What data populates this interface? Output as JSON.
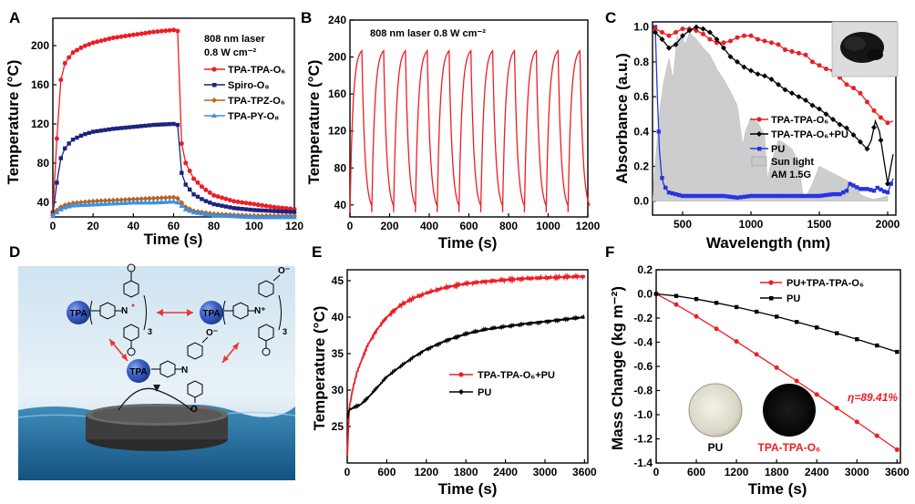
{
  "chart_data": [
    {
      "panel": "A",
      "type": "line",
      "xlabel": "Time (s)",
      "ylabel": "Temperature (°C)",
      "xlim": [
        0,
        120
      ],
      "ylim": [
        25,
        228
      ],
      "xticks": [
        0,
        20,
        40,
        60,
        80,
        100,
        120
      ],
      "yticks": [
        40,
        80,
        120,
        160,
        200
      ],
      "annotation": [
        "808 nm laser",
        "0.8 W cm⁻²"
      ],
      "series": [
        {
          "name": "TPA-TPA-O₆",
          "color": "#ee1c25",
          "marker": "circle",
          "x": [
            0,
            2,
            4,
            6,
            8,
            10,
            15,
            20,
            30,
            40,
            50,
            60,
            62,
            64,
            66,
            70,
            75,
            80,
            90,
            100,
            110,
            120
          ],
          "y": [
            30,
            105,
            165,
            182,
            188,
            193,
            199,
            203,
            208,
            211,
            214,
            216,
            215,
            100,
            80,
            64,
            54,
            47,
            41,
            38,
            35,
            33
          ]
        },
        {
          "name": "Spiro-O₈",
          "color": "#1a237e",
          "marker": "square",
          "x": [
            0,
            2,
            4,
            6,
            8,
            10,
            15,
            20,
            30,
            40,
            50,
            60,
            62,
            64,
            66,
            70,
            75,
            80,
            90,
            100,
            110,
            120
          ],
          "y": [
            28,
            60,
            85,
            95,
            100,
            104,
            109,
            112,
            115,
            117,
            119,
            120,
            119,
            70,
            58,
            48,
            42,
            38,
            34,
            32,
            31,
            30
          ]
        },
        {
          "name": "TPA-TPZ-O₆",
          "color": "#b8631c",
          "marker": "diamond",
          "x": [
            0,
            3,
            6,
            10,
            20,
            30,
            40,
            50,
            60,
            62,
            66,
            70,
            80,
            90,
            100,
            110,
            120
          ],
          "y": [
            27,
            34,
            37,
            39,
            41,
            42,
            43,
            44,
            45,
            44,
            35,
            31,
            28,
            27,
            26,
            26,
            26
          ]
        },
        {
          "name": "TPA-PY-O₈",
          "color": "#3a8ee6",
          "marker": "triangle",
          "x": [
            0,
            3,
            6,
            10,
            20,
            30,
            40,
            50,
            60,
            62,
            66,
            70,
            80,
            90,
            100,
            110,
            120
          ],
          "y": [
            26,
            32,
            35,
            37,
            38,
            39,
            40,
            40,
            41,
            40,
            33,
            30,
            27,
            26,
            25,
            25,
            25
          ]
        }
      ]
    },
    {
      "panel": "B",
      "type": "line",
      "xlabel": "Time (s)",
      "ylabel": "Temperature (°C)",
      "xlim": [
        0,
        1200
      ],
      "ylim": [
        27,
        240
      ],
      "xticks": [
        0,
        200,
        400,
        600,
        800,
        1000,
        1200
      ],
      "yticks": [
        40,
        80,
        120,
        160,
        200,
        240
      ],
      "annotation": [
        "808 nm laser 0.8 W cm⁻²"
      ],
      "cycles": 11,
      "period": 110,
      "heat_duration": 60,
      "min_temp": 32,
      "max_temp": 210,
      "series": [
        {
          "name": "TPA-TPA-O₆",
          "color": "#ee1c25"
        }
      ]
    },
    {
      "panel": "C",
      "type": "line",
      "xlabel": "Wavelength (nm)",
      "ylabel": "Absorbance (a.u.)",
      "xlim": [
        280,
        2060
      ],
      "ylim": [
        -0.08,
        1.03
      ],
      "xticks": [
        500,
        1000,
        1500,
        2000
      ],
      "yticks": [
        0.0,
        0.2,
        0.4,
        0.6,
        0.8,
        1.0
      ],
      "series": [
        {
          "name": "TPA-TPA-O₆",
          "color": "#ee1c25",
          "marker": "circle",
          "x": [
            300,
            350,
            400,
            450,
            500,
            550,
            600,
            650,
            700,
            750,
            800,
            850,
            900,
            950,
            1000,
            1050,
            1100,
            1150,
            1200,
            1250,
            1300,
            1350,
            1400,
            1450,
            1500,
            1550,
            1600,
            1650,
            1700,
            1750,
            1800,
            1850,
            1900,
            1950,
            2000,
            2040
          ],
          "y": [
            0.99,
            0.97,
            0.95,
            0.97,
            0.99,
            0.99,
            0.98,
            0.96,
            0.93,
            0.91,
            0.91,
            0.92,
            0.94,
            0.95,
            0.95,
            0.93,
            0.92,
            0.91,
            0.9,
            0.87,
            0.86,
            0.85,
            0.84,
            0.8,
            0.78,
            0.76,
            0.75,
            0.71,
            0.67,
            0.65,
            0.62,
            0.57,
            0.52,
            0.48,
            0.45,
            0.46
          ]
        },
        {
          "name": "TPA-TPA-O₆+PU",
          "color": "#000000",
          "marker": "diamond",
          "x": [
            300,
            350,
            400,
            450,
            500,
            550,
            600,
            650,
            700,
            750,
            800,
            850,
            900,
            950,
            1000,
            1050,
            1100,
            1150,
            1200,
            1250,
            1300,
            1350,
            1400,
            1450,
            1500,
            1550,
            1600,
            1650,
            1700,
            1750,
            1800,
            1850,
            1880,
            1910,
            1940,
            1970,
            2000,
            2040
          ],
          "y": [
            0.97,
            0.93,
            0.88,
            0.9,
            0.95,
            0.98,
            1.0,
            0.99,
            0.97,
            0.93,
            0.88,
            0.83,
            0.8,
            0.77,
            0.75,
            0.73,
            0.72,
            0.7,
            0.67,
            0.64,
            0.62,
            0.6,
            0.58,
            0.55,
            0.53,
            0.5,
            0.47,
            0.44,
            0.42,
            0.38,
            0.34,
            0.3,
            0.35,
            0.46,
            0.4,
            0.25,
            0.1,
            0.27
          ]
        },
        {
          "name": "PU",
          "color": "#2633e6",
          "marker": "square",
          "x": [
            300,
            315,
            330,
            345,
            360,
            380,
            400,
            450,
            500,
            600,
            700,
            800,
            900,
            1000,
            1100,
            1200,
            1300,
            1400,
            1500,
            1600,
            1650,
            1700,
            1720,
            1750,
            1800,
            1850,
            1900,
            1930,
            1960,
            2000,
            2040
          ],
          "y": [
            1.0,
            0.6,
            0.3,
            0.15,
            0.1,
            0.07,
            0.05,
            0.04,
            0.03,
            0.03,
            0.03,
            0.03,
            0.02,
            0.03,
            0.03,
            0.03,
            0.03,
            0.03,
            0.03,
            0.04,
            0.04,
            0.06,
            0.1,
            0.09,
            0.07,
            0.07,
            0.06,
            0.08,
            0.06,
            0.05,
            0.13
          ]
        },
        {
          "name": "Sun light AM 1.5G",
          "type": "area",
          "color": "#c8c8c8",
          "x": [
            280,
            300,
            330,
            360,
            400,
            430,
            460,
            480,
            500,
            520,
            550,
            600,
            650,
            700,
            750,
            800,
            850,
            900,
            940,
            960,
            1000,
            1050,
            1100,
            1120,
            1140,
            1200,
            1250,
            1300,
            1350,
            1380,
            1400,
            1450,
            1500,
            1550,
            1600,
            1650,
            1700,
            1750,
            1800,
            1850,
            1900,
            1950,
            2000
          ],
          "y": [
            0.0,
            0.22,
            0.5,
            0.68,
            0.82,
            0.7,
            0.95,
            0.92,
            0.94,
            0.9,
            0.97,
            0.93,
            0.88,
            0.84,
            0.76,
            0.7,
            0.63,
            0.55,
            0.32,
            0.4,
            0.48,
            0.45,
            0.38,
            0.12,
            0.2,
            0.35,
            0.33,
            0.3,
            0.22,
            0.03,
            0.02,
            0.1,
            0.2,
            0.18,
            0.16,
            0.14,
            0.12,
            0.1,
            0.04,
            0.02,
            0.01,
            0.02,
            0.03
          ]
        }
      ]
    },
    {
      "panel": "E",
      "type": "line",
      "xlabel": "Time (s)",
      "ylabel": "Temperature (°C)",
      "xlim": [
        0,
        3650
      ],
      "ylim": [
        20,
        46.5
      ],
      "xticks": [
        0,
        600,
        1200,
        1800,
        2400,
        3000,
        3600
      ],
      "yticks": [
        25,
        30,
        35,
        40,
        45
      ],
      "series": [
        {
          "name": "TPA-TPA-O₆+PU",
          "color": "#ee1c25",
          "x": [
            0,
            30,
            80,
            150,
            300,
            450,
            600,
            800,
            1000,
            1200,
            1500,
            1800,
            2100,
            2400,
            2700,
            3000,
            3300,
            3600
          ],
          "y": [
            21,
            27.5,
            30,
            32.5,
            36,
            38.3,
            40,
            41.6,
            42.6,
            43.3,
            44.1,
            44.6,
            44.9,
            45.1,
            45.3,
            45.4,
            45.5,
            45.6
          ]
        },
        {
          "name": "PU",
          "color": "#000000",
          "x": [
            0,
            30,
            100,
            200,
            300,
            450,
            600,
            800,
            1000,
            1200,
            1500,
            1800,
            2100,
            2400,
            2700,
            3000,
            3300,
            3600
          ],
          "y": [
            26,
            27.3,
            27.6,
            28,
            28.8,
            30.3,
            31.8,
            33.2,
            34.5,
            35.6,
            36.8,
            37.7,
            38.3,
            38.7,
            39.1,
            39.4,
            39.7,
            40
          ]
        }
      ]
    },
    {
      "panel": "F",
      "type": "line",
      "xlabel": "Time (s)",
      "ylabel": "Mass Change (kg m⁻²)",
      "xlim": [
        0,
        3650
      ],
      "ylim": [
        -1.4,
        0.2
      ],
      "xticks": [
        0,
        600,
        1200,
        1800,
        2400,
        3000,
        3600
      ],
      "yticks": [
        0.2,
        0.0,
        -0.2,
        -0.4,
        -0.6,
        -0.8,
        -1.0,
        -1.2,
        -1.4
      ],
      "annotation": "η=89.41%",
      "series": [
        {
          "name": "PU+TPA-TPA-O₆",
          "color": "#ee1c25",
          "marker": "circle",
          "slope_end": -1.29
        },
        {
          "name": "PU",
          "color": "#000000",
          "marker": "square",
          "slope_end": -0.48
        }
      ]
    }
  ],
  "panels": {
    "a": {
      "letter": "A",
      "ann1": "808 nm laser",
      "ann2": "0.8 W cm⁻²",
      "leg": [
        "TPA-TPA-O₆",
        "Spiro-O₈",
        "TPA-TPZ-O₆",
        "TPA-PY-O₈"
      ],
      "xlabel": "Time (s)",
      "ylabel": "Temperature (°C)"
    },
    "b": {
      "letter": "B",
      "ann": "808 nm laser 0.8 W cm⁻²",
      "xlabel": "Time (s)",
      "ylabel": "Temperature (°C)"
    },
    "c": {
      "letter": "C",
      "leg": [
        "TPA-TPA-O₆",
        "TPA-TPA-O₆+PU",
        "PU",
        "Sun light",
        "AM 1.5G"
      ],
      "xlabel": "Wavelength (nm)",
      "ylabel": "Absorbance (a.u.)"
    },
    "d": {
      "letter": "D",
      "tpa": "TPA",
      "sub3": "3",
      "oneg": "O⁻",
      "o": "O",
      "nplus": "N⁺",
      "n": "N"
    },
    "e": {
      "letter": "E",
      "leg": [
        "TPA-TPA-O₆+PU",
        "PU"
      ],
      "xlabel": "Time (s)",
      "ylabel": "Temperature (°C)"
    },
    "f": {
      "letter": "F",
      "leg": [
        "PU+TPA-TPA-O₆",
        "PU"
      ],
      "eta": "η=89.41%",
      "photo_pu": "PU",
      "photo_tpa": "TPA-TPA-O₆",
      "xlabel": "Time (s)",
      "ylabel": "Mass Change (kg m⁻²)"
    }
  },
  "colors": {
    "red": "#ee1c25",
    "navy": "#1a237e",
    "brown": "#b8631c",
    "lightblue": "#3a8ee6",
    "blue": "#2633e6",
    "gray": "#c8c8c8"
  }
}
